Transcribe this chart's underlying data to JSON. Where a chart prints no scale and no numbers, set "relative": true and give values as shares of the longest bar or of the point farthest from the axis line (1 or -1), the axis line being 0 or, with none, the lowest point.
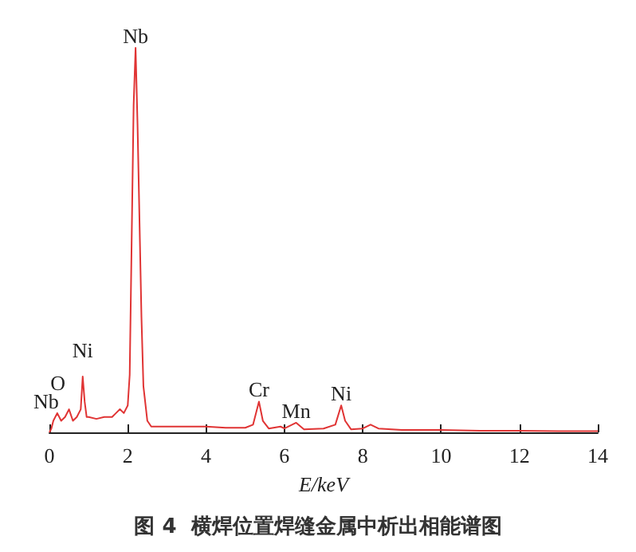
{
  "chart_data": {
    "type": "line",
    "title": "图 4  横焊位置焊缝金属中析出相能谱图",
    "xlabel": "E/keV",
    "relative": true,
    "xlim": [
      0,
      14
    ],
    "xticks": [
      0,
      2,
      4,
      6,
      8,
      10,
      12,
      14
    ],
    "grid": false,
    "marker": "none",
    "line_style": "solid",
    "series": [
      {
        "color": "#e03434",
        "x": [
          0,
          0.05,
          0.1,
          0.2,
          0.3,
          0.4,
          0.5,
          0.6,
          0.7,
          0.8,
          0.85,
          0.9,
          0.95,
          1.0,
          1.2,
          1.4,
          1.6,
          1.7,
          1.8,
          1.9,
          2.0,
          2.05,
          2.1,
          2.15,
          2.2,
          2.25,
          2.3,
          2.35,
          2.4,
          2.5,
          2.6,
          3,
          3.5,
          4,
          4.5,
          5,
          5.2,
          5.35,
          5.45,
          5.6,
          5.9,
          6.0,
          6.3,
          6.5,
          7,
          7.3,
          7.45,
          7.55,
          7.7,
          8,
          8.2,
          8.4,
          9,
          10,
          11,
          12,
          13,
          14
        ],
        "values": [
          0,
          0.01,
          0.03,
          0.05,
          0.03,
          0.04,
          0.06,
          0.03,
          0.04,
          0.06,
          0.145,
          0.08,
          0.04,
          0.04,
          0.035,
          0.04,
          0.04,
          0.05,
          0.06,
          0.05,
          0.07,
          0.15,
          0.5,
          0.85,
          1.0,
          0.8,
          0.55,
          0.3,
          0.12,
          0.03,
          0.015,
          0.015,
          0.015,
          0.015,
          0.012,
          0.012,
          0.02,
          0.08,
          0.03,
          0.01,
          0.015,
          0.01,
          0.025,
          0.008,
          0.01,
          0.02,
          0.07,
          0.03,
          0.008,
          0.01,
          0.02,
          0.01,
          0.006,
          0.006,
          0.004,
          0.004,
          0.003,
          0.003
        ]
      }
    ],
    "annotations": [
      {
        "text": "Nb",
        "x": 2.2,
        "y": 1.0
      },
      {
        "text": "Nb",
        "x": 0.2,
        "y": 0.05
      },
      {
        "text": "O",
        "x": 0.5,
        "y": 0.06
      },
      {
        "text": "Ni",
        "x": 0.85,
        "y": 0.145
      },
      {
        "text": "Cr",
        "x": 5.35,
        "y": 0.08
      },
      {
        "text": "Mn",
        "x": 6.3,
        "y": 0.025
      },
      {
        "text": "Ni",
        "x": 7.45,
        "y": 0.07
      }
    ]
  }
}
